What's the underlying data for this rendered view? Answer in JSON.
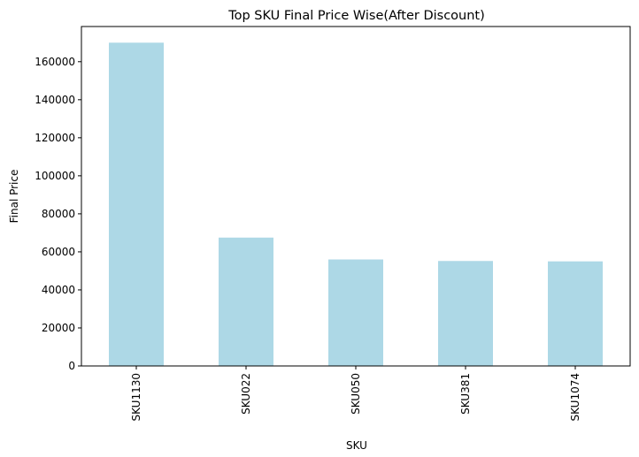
{
  "chart_data": {
    "type": "bar",
    "title": "Top SKU Final Price Wise(After Discount)",
    "xlabel": "SKU",
    "ylabel": "Final Price",
    "categories": [
      "SKU1130",
      "SKU022",
      "SKU050",
      "SKU381",
      "SKU1074"
    ],
    "values": [
      170000,
      67500,
      56000,
      55200,
      55000
    ],
    "ylim": [
      0,
      178500
    ],
    "yticks": [
      0,
      20000,
      40000,
      60000,
      80000,
      100000,
      120000,
      140000,
      160000
    ],
    "bar_color": "#add8e6",
    "grid": false,
    "legend": "none"
  }
}
